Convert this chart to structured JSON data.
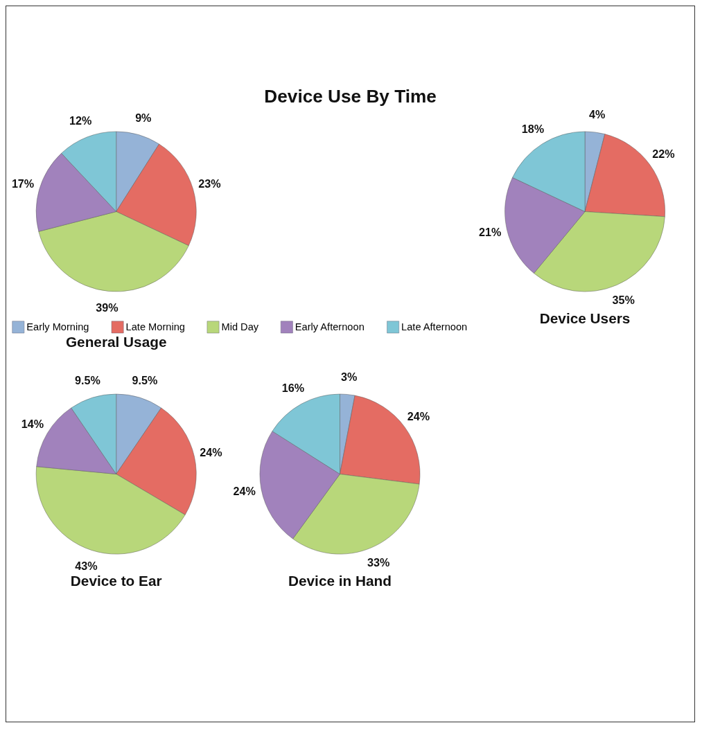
{
  "chart_data": [
    {
      "type": "other",
      "title": "Device Use By Time"
    },
    {
      "type": "pie",
      "title": "General Usage",
      "categories": [
        "Early Morning",
        "Late Morning",
        "Mid Day",
        "Early Afternoon",
        "Late Afternoon"
      ],
      "values": [
        9,
        23,
        39,
        17,
        12
      ],
      "value_labels": [
        "9%",
        "23%",
        "39%",
        "17%",
        "12%"
      ],
      "colors": [
        "#95b3d7",
        "#e46c63",
        "#b8d77a",
        "#a182bc",
        "#7fc6d6"
      ],
      "legend": "bottom"
    },
    {
      "type": "pie",
      "title": "Device Users",
      "categories": [
        null,
        null,
        null,
        null,
        null
      ],
      "values": [
        4,
        22,
        35,
        21,
        18
      ],
      "value_labels": [
        "4%",
        "22%",
        "35%",
        "21%",
        "18%"
      ],
      "colors": [
        "#95b3d7",
        "#e46c63",
        "#b8d77a",
        "#a182bc",
        "#7fc6d6"
      ]
    },
    {
      "type": "pie",
      "title": "Device to Ear",
      "categories": [
        null,
        null,
        null,
        null,
        null
      ],
      "values": [
        9.5,
        24,
        43,
        14,
        9.5
      ],
      "value_labels": [
        "9.5%",
        "24%",
        "43%",
        "14%",
        "9.5%"
      ],
      "colors": [
        "#95b3d7",
        "#e46c63",
        "#b8d77a",
        "#a182bc",
        "#7fc6d6"
      ]
    },
    {
      "type": "pie",
      "title": "Device in Hand",
      "categories": [
        null,
        null,
        null,
        null,
        null
      ],
      "values": [
        3,
        24,
        33,
        24,
        16
      ],
      "value_labels": [
        "3%",
        "24%",
        "33%",
        "24%",
        "16%"
      ],
      "colors": [
        "#95b3d7",
        "#e46c63",
        "#b8d77a",
        "#a182bc",
        "#7fc6d6"
      ]
    }
  ]
}
